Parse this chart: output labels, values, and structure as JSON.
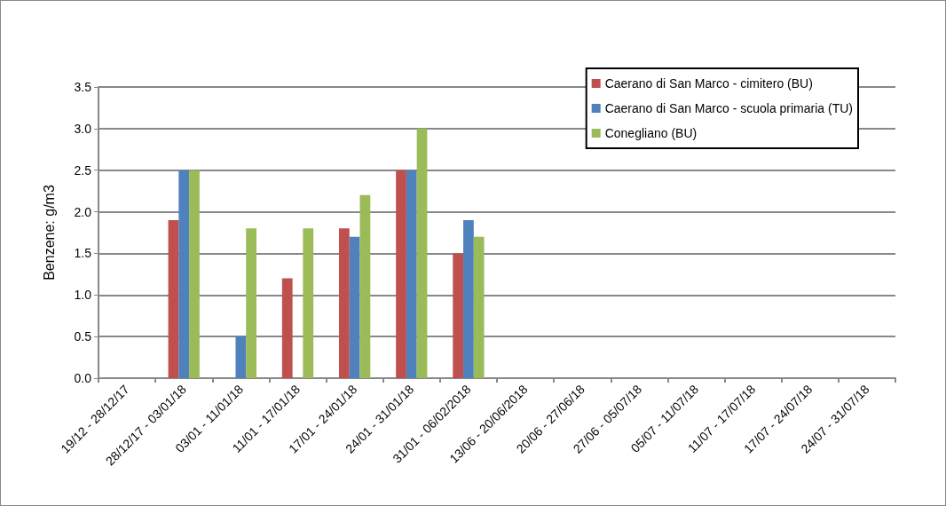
{
  "chart_data": {
    "type": "bar",
    "ylabel": "Benzene: g/m3",
    "categories": [
      "19/12 - 28/12/17",
      "28/12/17 - 03/01/18",
      "03/01 - 11/01/18",
      "11/01 - 17/01/18",
      "17/01 - 24/01/18",
      "24/01 - 31/01/18",
      "31/01 - 06/02/2018",
      "13/06 - 20/06/2018",
      "20/06 - 27/06/18",
      "27/06 - 05/07/18",
      "05/07 - 11/07/18",
      "11/07 - 17/07/18",
      "17/07 - 24/07/18",
      "24/07 - 31/07/18"
    ],
    "series": [
      {
        "name": "Caerano di San Marco - cimitero (BU)",
        "color": "#c0504d",
        "values": [
          null,
          1.9,
          null,
          1.2,
          1.8,
          2.5,
          1.5,
          null,
          null,
          null,
          null,
          null,
          null,
          null
        ]
      },
      {
        "name": "Caerano di San Marco - scuola primaria (TU)",
        "color": "#4f81bd",
        "values": [
          null,
          2.5,
          0.5,
          null,
          1.7,
          2.5,
          1.9,
          null,
          null,
          null,
          null,
          null,
          null,
          null
        ]
      },
      {
        "name": "Conegliano (BU)",
        "color": "#9bbb59",
        "values": [
          null,
          2.5,
          1.8,
          1.8,
          2.2,
          3.0,
          1.7,
          null,
          null,
          null,
          null,
          null,
          null,
          null
        ]
      }
    ],
    "ylim": [
      0,
      3.5
    ],
    "yticks": [
      {
        "value": 0,
        "label": "0.0"
      },
      0.5,
      {
        "value": 1,
        "label": "1.0"
      },
      1.5,
      {
        "value": 2,
        "label": "2.0"
      },
      2.5,
      {
        "value": 3,
        "label": "3.0"
      },
      3.5
    ],
    "grid": "y",
    "legend": "top right"
  }
}
